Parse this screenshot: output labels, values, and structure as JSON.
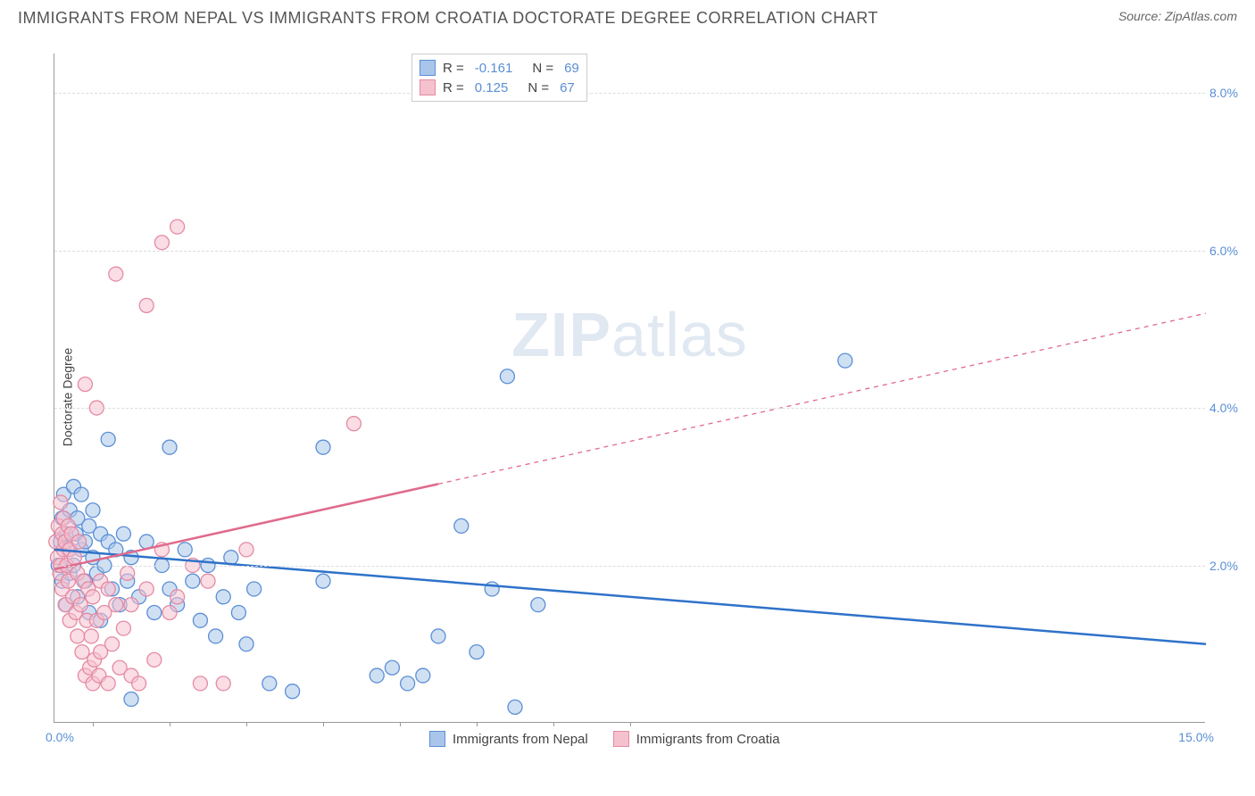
{
  "header": {
    "title": "IMMIGRANTS FROM NEPAL VS IMMIGRANTS FROM CROATIA DOCTORATE DEGREE CORRELATION CHART",
    "source_label": "Source: ",
    "source_name": "ZipAtlas.com"
  },
  "chart": {
    "type": "scatter",
    "y_axis_label": "Doctorate Degree",
    "x_range": [
      0,
      15
    ],
    "y_range": [
      0,
      8.5
    ],
    "y_gridlines": [
      2,
      4,
      6,
      8
    ],
    "y_tick_labels": [
      "2.0%",
      "4.0%",
      "6.0%",
      "8.0%"
    ],
    "x_tick_left": "0.0%",
    "x_tick_right": "15.0%",
    "x_minor_ticks": [
      0.5,
      1.5,
      2.5,
      3.5,
      4.5,
      5.5,
      6.5,
      7.5
    ],
    "background_color": "#ffffff",
    "grid_color": "#dddddd",
    "axis_color": "#999999",
    "marker_radius": 8,
    "marker_stroke_width": 1.3,
    "line_width_solid": 2.5,
    "watermark": "ZIPatlas",
    "series": [
      {
        "name": "Immigrants from Nepal",
        "fill_color": "#a9c6ea",
        "stroke_color": "#5b8fd6",
        "line_color": "#2e72c9",
        "R": "-0.161",
        "N": "69",
        "trend": {
          "x1": 0,
          "y1": 2.2,
          "x2": 15,
          "y2": 1.0,
          "dashed": false
        },
        "points": [
          [
            0.05,
            2.0
          ],
          [
            0.08,
            2.3
          ],
          [
            0.1,
            2.6
          ],
          [
            0.1,
            1.8
          ],
          [
            0.12,
            2.9
          ],
          [
            0.15,
            2.4
          ],
          [
            0.15,
            1.5
          ],
          [
            0.18,
            2.2
          ],
          [
            0.2,
            2.7
          ],
          [
            0.2,
            1.9
          ],
          [
            0.25,
            3.0
          ],
          [
            0.25,
            2.0
          ],
          [
            0.28,
            2.4
          ],
          [
            0.3,
            1.6
          ],
          [
            0.3,
            2.6
          ],
          [
            0.35,
            2.2
          ],
          [
            0.35,
            2.9
          ],
          [
            0.4,
            1.8
          ],
          [
            0.4,
            2.3
          ],
          [
            0.45,
            2.5
          ],
          [
            0.45,
            1.4
          ],
          [
            0.5,
            2.1
          ],
          [
            0.5,
            2.7
          ],
          [
            0.55,
            1.9
          ],
          [
            0.6,
            2.4
          ],
          [
            0.6,
            1.3
          ],
          [
            0.65,
            2.0
          ],
          [
            0.7,
            2.3
          ],
          [
            0.7,
            3.6
          ],
          [
            0.75,
            1.7
          ],
          [
            0.8,
            2.2
          ],
          [
            0.85,
            1.5
          ],
          [
            0.9,
            2.4
          ],
          [
            0.95,
            1.8
          ],
          [
            1.0,
            2.1
          ],
          [
            1.0,
            0.3
          ],
          [
            1.1,
            1.6
          ],
          [
            1.2,
            2.3
          ],
          [
            1.3,
            1.4
          ],
          [
            1.4,
            2.0
          ],
          [
            1.5,
            1.7
          ],
          [
            1.5,
            3.5
          ],
          [
            1.6,
            1.5
          ],
          [
            1.7,
            2.2
          ],
          [
            1.8,
            1.8
          ],
          [
            1.9,
            1.3
          ],
          [
            2.0,
            2.0
          ],
          [
            2.1,
            1.1
          ],
          [
            2.2,
            1.6
          ],
          [
            2.3,
            2.1
          ],
          [
            2.4,
            1.4
          ],
          [
            2.5,
            1.0
          ],
          [
            2.6,
            1.7
          ],
          [
            2.8,
            0.5
          ],
          [
            3.1,
            0.4
          ],
          [
            3.5,
            3.5
          ],
          [
            3.5,
            1.8
          ],
          [
            4.2,
            0.6
          ],
          [
            4.4,
            0.7
          ],
          [
            4.6,
            0.5
          ],
          [
            4.8,
            0.6
          ],
          [
            5.0,
            1.1
          ],
          [
            5.3,
            2.5
          ],
          [
            5.5,
            0.9
          ],
          [
            5.7,
            1.7
          ],
          [
            6.0,
            0.2
          ],
          [
            6.3,
            1.5
          ],
          [
            5.9,
            4.4
          ],
          [
            10.3,
            4.6
          ]
        ]
      },
      {
        "name": "Immigrants from Croatia",
        "fill_color": "#f5c1cf",
        "stroke_color": "#e58aa3",
        "line_color": "#e06a8c",
        "R": "0.125",
        "N": "67",
        "trend": {
          "x1": 0,
          "y1": 1.95,
          "x2": 15,
          "y2": 5.2,
          "dashed_from": 5.0
        },
        "points": [
          [
            0.02,
            2.3
          ],
          [
            0.04,
            2.1
          ],
          [
            0.05,
            2.5
          ],
          [
            0.07,
            1.9
          ],
          [
            0.08,
            2.8
          ],
          [
            0.08,
            2.0
          ],
          [
            0.1,
            2.4
          ],
          [
            0.1,
            1.7
          ],
          [
            0.12,
            2.6
          ],
          [
            0.12,
            2.2
          ],
          [
            0.14,
            1.5
          ],
          [
            0.14,
            2.3
          ],
          [
            0.16,
            2.0
          ],
          [
            0.18,
            2.5
          ],
          [
            0.18,
            1.8
          ],
          [
            0.2,
            2.2
          ],
          [
            0.2,
            1.3
          ],
          [
            0.22,
            2.4
          ],
          [
            0.24,
            1.6
          ],
          [
            0.26,
            2.1
          ],
          [
            0.28,
            1.4
          ],
          [
            0.3,
            1.9
          ],
          [
            0.3,
            1.1
          ],
          [
            0.32,
            2.3
          ],
          [
            0.34,
            1.5
          ],
          [
            0.36,
            0.9
          ],
          [
            0.38,
            1.8
          ],
          [
            0.4,
            0.6
          ],
          [
            0.4,
            4.3
          ],
          [
            0.42,
            1.3
          ],
          [
            0.44,
            1.7
          ],
          [
            0.46,
            0.7
          ],
          [
            0.48,
            1.1
          ],
          [
            0.5,
            0.5
          ],
          [
            0.5,
            1.6
          ],
          [
            0.52,
            0.8
          ],
          [
            0.55,
            1.3
          ],
          [
            0.55,
            4.0
          ],
          [
            0.58,
            0.6
          ],
          [
            0.6,
            1.8
          ],
          [
            0.6,
            0.9
          ],
          [
            0.65,
            1.4
          ],
          [
            0.7,
            0.5
          ],
          [
            0.7,
            1.7
          ],
          [
            0.75,
            1.0
          ],
          [
            0.8,
            1.5
          ],
          [
            0.8,
            5.7
          ],
          [
            0.85,
            0.7
          ],
          [
            0.9,
            1.2
          ],
          [
            0.95,
            1.9
          ],
          [
            1.0,
            0.6
          ],
          [
            1.0,
            1.5
          ],
          [
            1.1,
            0.5
          ],
          [
            1.2,
            1.7
          ],
          [
            1.2,
            5.3
          ],
          [
            1.3,
            0.8
          ],
          [
            1.4,
            2.2
          ],
          [
            1.4,
            6.1
          ],
          [
            1.5,
            1.4
          ],
          [
            1.6,
            6.3
          ],
          [
            1.6,
            1.6
          ],
          [
            1.8,
            2.0
          ],
          [
            1.9,
            0.5
          ],
          [
            2.0,
            1.8
          ],
          [
            2.2,
            0.5
          ],
          [
            2.5,
            2.2
          ],
          [
            3.9,
            3.8
          ]
        ]
      }
    ],
    "legend_bottom": [
      {
        "label": "Immigrants from Nepal",
        "fill": "#a9c6ea",
        "stroke": "#5b8fd6"
      },
      {
        "label": "Immigrants from Croatia",
        "fill": "#f5c1cf",
        "stroke": "#e58aa3"
      }
    ]
  }
}
